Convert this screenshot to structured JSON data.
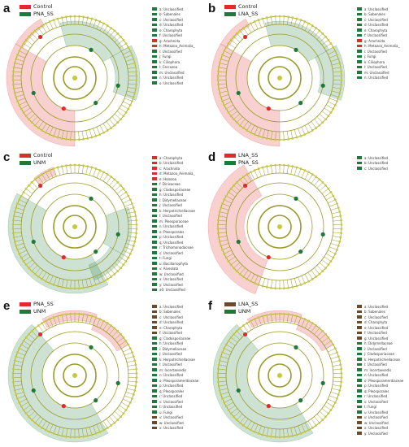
{
  "colors": {
    "red": "#e12a2a",
    "green": "#1e7a3c",
    "brown": "#6b4a2b",
    "node": "#c8c93a"
  },
  "panels": [
    {
      "letter": "a",
      "legend": [
        {
          "label": "Control",
          "color": "#e12a2a"
        },
        {
          "label": "PNA_SS",
          "color": "#1e7a3c"
        }
      ],
      "taxa": [
        {
          "label": "a: Unclassified",
          "color": "#1e7a3c"
        },
        {
          "label": "b: Sobenales",
          "color": "#1e7a3c"
        },
        {
          "label": "c: Unclassified",
          "color": "#1e7a3c"
        },
        {
          "label": "d: Unclassified",
          "color": "#1e7a3c"
        },
        {
          "label": "e: Charophyta",
          "color": "#1e7a3c"
        },
        {
          "label": "f: Unclassified",
          "color": "#1e7a3c"
        },
        {
          "label": "g: Arachnida",
          "color": "#e12a2a"
        },
        {
          "label": "h: Metazoa_Animalia_",
          "color": "#e12a2a"
        },
        {
          "label": "i: Unclassified",
          "color": "#1e7a3c"
        },
        {
          "label": "j: Fungi",
          "color": "#1e7a3c"
        },
        {
          "label": "k: Ciliophora",
          "color": "#1e7a3c"
        },
        {
          "label": "l: Cercozoa",
          "color": "#1e7a3c"
        },
        {
          "label": "m: Unclassified",
          "color": "#1e7a3c"
        },
        {
          "label": "n: Unclassified",
          "color": "#1e7a3c"
        },
        {
          "label": "o: Unclassified",
          "color": "#1e7a3c"
        }
      ]
    },
    {
      "letter": "b",
      "legend": [
        {
          "label": "Control",
          "color": "#e12a2a"
        },
        {
          "label": "LNA_SS",
          "color": "#1e7a3c"
        }
      ],
      "taxa": [
        {
          "label": "a: Unclassified",
          "color": "#1e7a3c"
        },
        {
          "label": "b: Sobenales",
          "color": "#1e7a3c"
        },
        {
          "label": "c: Unclassified",
          "color": "#1e7a3c"
        },
        {
          "label": "d: Unclassified",
          "color": "#1e7a3c"
        },
        {
          "label": "e: Charophyta",
          "color": "#1e7a3c"
        },
        {
          "label": "f: Unclassified",
          "color": "#1e7a3c"
        },
        {
          "label": "g: Arachnida",
          "color": "#e12a2a"
        },
        {
          "label": "h: Metazoa_Animalia_",
          "color": "#e12a2a"
        },
        {
          "label": "i: Unclassified",
          "color": "#1e7a3c"
        },
        {
          "label": "j: Fungi",
          "color": "#1e7a3c"
        },
        {
          "label": "k: Ciliophora",
          "color": "#1e7a3c"
        },
        {
          "label": "l: Unclassified",
          "color": "#1e7a3c"
        },
        {
          "label": "m: Unclassified",
          "color": "#1e7a3c"
        },
        {
          "label": "n: Unclassified",
          "color": "#1e7a3c"
        }
      ]
    },
    {
      "letter": "c",
      "legend": [
        {
          "label": "Control",
          "color": "#e12a2a"
        },
        {
          "label": "UNM",
          "color": "#1e7a3c"
        }
      ],
      "taxa": [
        {
          "label": "a: Charophyta",
          "color": "#e12a2a"
        },
        {
          "label": "b: Unclassified",
          "color": "#e12a2a"
        },
        {
          "label": "c: Arachnida",
          "color": "#e12a2a"
        },
        {
          "label": "d: Metazoa_Animalia_",
          "color": "#e12a2a"
        },
        {
          "label": "e: Holozoa",
          "color": "#e12a2a"
        },
        {
          "label": "f: Dinisaceae",
          "color": "#1e7a3c"
        },
        {
          "label": "g: Cladosporiaceae",
          "color": "#1e7a3c"
        },
        {
          "label": "h: Unclassified",
          "color": "#1e7a3c"
        },
        {
          "label": "i: Didymellaceae",
          "color": "#1e7a3c"
        },
        {
          "label": "j: Unclassified",
          "color": "#1e7a3c"
        },
        {
          "label": "k: Herpotrichiellaceae",
          "color": "#1e7a3c"
        },
        {
          "label": "l: Unclassified",
          "color": "#1e7a3c"
        },
        {
          "label": "m: Pleosporaceae",
          "color": "#1e7a3c"
        },
        {
          "label": "n: Unclassified",
          "color": "#1e7a3c"
        },
        {
          "label": "o: Pleosporales",
          "color": "#1e7a3c"
        },
        {
          "label": "p: Unclassified",
          "color": "#1e7a3c"
        },
        {
          "label": "q: Unclassified",
          "color": "#1e7a3c"
        },
        {
          "label": "r: Trichomonadaceae",
          "color": "#1e7a3c"
        },
        {
          "label": "s: Unclassified",
          "color": "#1e7a3c"
        },
        {
          "label": "t: Fungi",
          "color": "#1e7a3c"
        },
        {
          "label": "u: Bacillariophyta",
          "color": "#1e7a3c"
        },
        {
          "label": "v: Alveolata",
          "color": "#1e7a3c"
        },
        {
          "label": "w: Unclassified",
          "color": "#1e7a3c"
        },
        {
          "label": "x: Unclassified",
          "color": "#1e7a3c"
        },
        {
          "label": "y: Unclassified",
          "color": "#1e7a3c"
        },
        {
          "label": "a0: Unclassified",
          "color": "#1e7a3c"
        }
      ]
    },
    {
      "letter": "d",
      "legend": [
        {
          "label": "LNA_SS",
          "color": "#e12a2a"
        },
        {
          "label": "PNA_SS",
          "color": "#1e7a3c"
        }
      ],
      "taxa": [
        {
          "label": "a: Unclassified",
          "color": "#1e7a3c"
        },
        {
          "label": "b: Unclassified",
          "color": "#1e7a3c"
        },
        {
          "label": "c: Unclassified",
          "color": "#1e7a3c"
        }
      ]
    },
    {
      "letter": "e",
      "legend": [
        {
          "label": "PNA_SS",
          "color": "#e12a2a"
        },
        {
          "label": "UNM",
          "color": "#1e7a3c"
        }
      ],
      "taxa": [
        {
          "label": "a: Unclassified",
          "color": "#6b4a2b"
        },
        {
          "label": "b: Sobenales",
          "color": "#6b4a2b"
        },
        {
          "label": "c: Unclassified",
          "color": "#6b4a2b"
        },
        {
          "label": "d: Unclassified",
          "color": "#6b4a2b"
        },
        {
          "label": "e: Charophyta",
          "color": "#6b4a2b"
        },
        {
          "label": "f: Unclassified",
          "color": "#6b4a2b"
        },
        {
          "label": "g: Cladosporiaceae",
          "color": "#1e7a3c"
        },
        {
          "label": "h: Unclassified",
          "color": "#1e7a3c"
        },
        {
          "label": "i: Didymellaceae",
          "color": "#1e7a3c"
        },
        {
          "label": "j: Unclassified",
          "color": "#1e7a3c"
        },
        {
          "label": "k: Herpotrichiellaceae",
          "color": "#1e7a3c"
        },
        {
          "label": "l: Unclassified",
          "color": "#1e7a3c"
        },
        {
          "label": "m: Incertaesedis",
          "color": "#1e7a3c"
        },
        {
          "label": "n: Unclassified",
          "color": "#1e7a3c"
        },
        {
          "label": "o: Pleosporamerdiaceae",
          "color": "#1e7a3c"
        },
        {
          "label": "p: Unclassified",
          "color": "#1e7a3c"
        },
        {
          "label": "q: Pleosporales",
          "color": "#1e7a3c"
        },
        {
          "label": "r: Unclassified",
          "color": "#1e7a3c"
        },
        {
          "label": "s: Unclassified",
          "color": "#1e7a3c"
        },
        {
          "label": "t: Unclassified",
          "color": "#1e7a3c"
        },
        {
          "label": "u: Fungi",
          "color": "#1e7a3c"
        },
        {
          "label": "v: Unclassified",
          "color": "#6b4a2b"
        },
        {
          "label": "w: Unclassified",
          "color": "#6b4a2b"
        },
        {
          "label": "x: Unclassified",
          "color": "#6b4a2b"
        }
      ]
    },
    {
      "letter": "f",
      "legend": [
        {
          "label": "LNA_SS",
          "color": "#6b4a2b"
        },
        {
          "label": "UNM",
          "color": "#1e7a3c"
        }
      ],
      "taxa": [
        {
          "label": "a: Unclassified",
          "color": "#6b4a2b"
        },
        {
          "label": "b: Sobenales",
          "color": "#6b4a2b"
        },
        {
          "label": "c: Unclassified",
          "color": "#6b4a2b"
        },
        {
          "label": "d: Charophyta",
          "color": "#6b4a2b"
        },
        {
          "label": "e: Unclassified",
          "color": "#6b4a2b"
        },
        {
          "label": "f: Unclassified",
          "color": "#6b4a2b"
        },
        {
          "label": "g: Unclassified",
          "color": "#6b4a2b"
        },
        {
          "label": "h: Didymellaceae",
          "color": "#1e7a3c"
        },
        {
          "label": "i: Unclassified",
          "color": "#1e7a3c"
        },
        {
          "label": "j: Cladosporiaceae",
          "color": "#1e7a3c"
        },
        {
          "label": "k: Herpotrichiellaceae",
          "color": "#1e7a3c"
        },
        {
          "label": "l: Unclassified",
          "color": "#1e7a3c"
        },
        {
          "label": "m: Incertaesedis",
          "color": "#1e7a3c"
        },
        {
          "label": "n: Unclassified",
          "color": "#1e7a3c"
        },
        {
          "label": "o: Pleosporamerdiaceae",
          "color": "#1e7a3c"
        },
        {
          "label": "p: Unclassified",
          "color": "#1e7a3c"
        },
        {
          "label": "q: Pleosporales",
          "color": "#1e7a3c"
        },
        {
          "label": "r: Unclassified",
          "color": "#1e7a3c"
        },
        {
          "label": "s: Unclassified",
          "color": "#1e7a3c"
        },
        {
          "label": "t: Fungi",
          "color": "#1e7a3c"
        },
        {
          "label": "u: Unclassified",
          "color": "#1e7a3c"
        },
        {
          "label": "v: Unclassified",
          "color": "#6b4a2b"
        },
        {
          "label": "w: Unclassified",
          "color": "#6b4a2b"
        },
        {
          "label": "x: Unclassified",
          "color": "#6b4a2b"
        },
        {
          "label": "y: Unclassified",
          "color": "#6b4a2b"
        }
      ]
    }
  ]
}
